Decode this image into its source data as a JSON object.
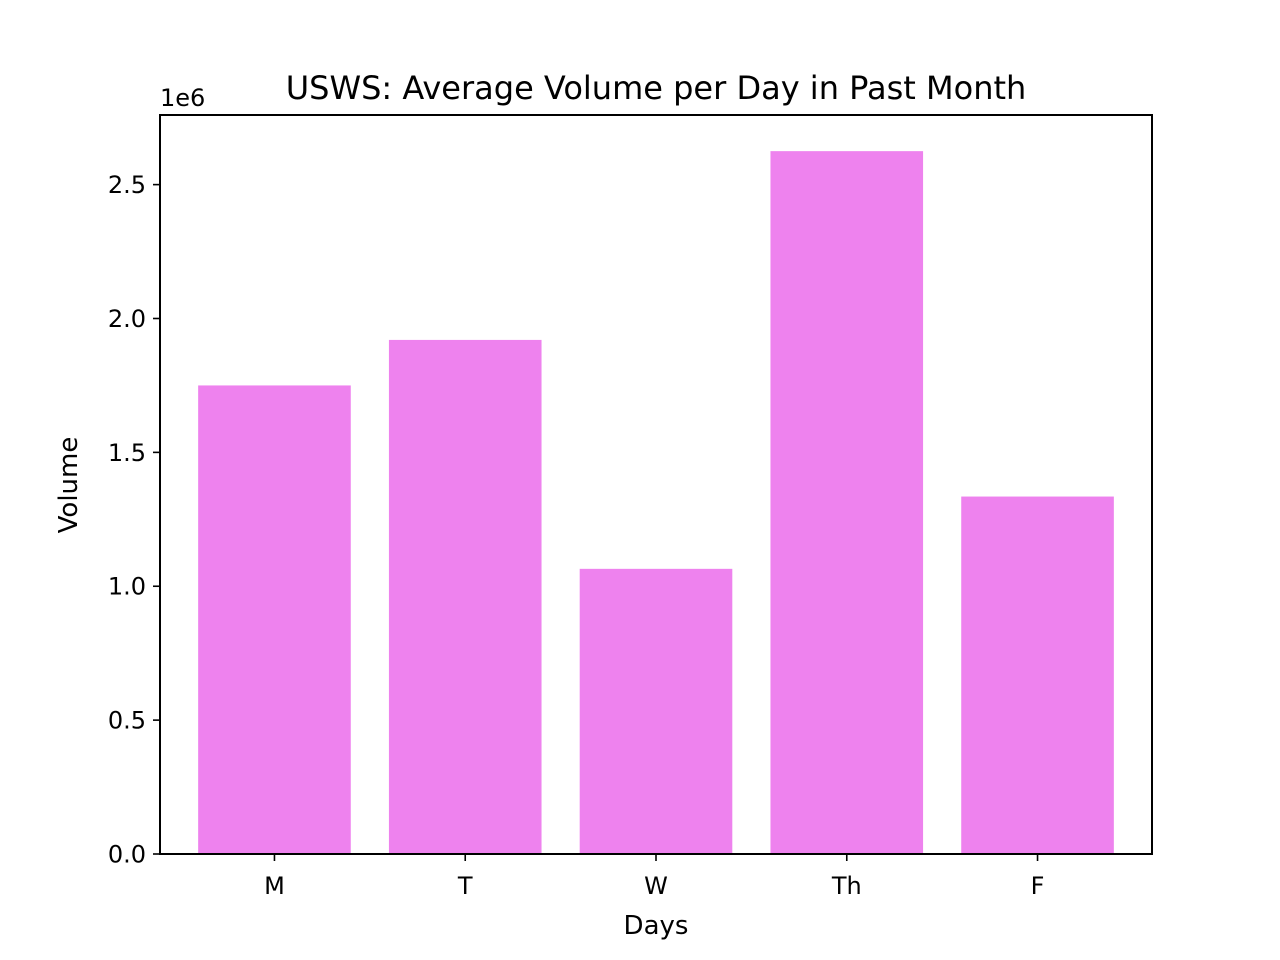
{
  "chart_data": {
    "type": "bar",
    "title": "USWS: Average Volume per Day in Past Month",
    "xlabel": "Days",
    "ylabel": "Volume",
    "y_offset_label": "1e6",
    "categories": [
      "M",
      "T",
      "W",
      "Th",
      "F"
    ],
    "values": [
      1750000,
      1920000,
      1065000,
      2625000,
      1335000
    ],
    "ylim": [
      0,
      2760000
    ],
    "yticks": [
      0,
      500000,
      1000000,
      1500000,
      2000000,
      2500000
    ],
    "ytick_labels": [
      "0.0",
      "0.5",
      "1.0",
      "1.5",
      "2.0",
      "2.5"
    ],
    "grid": false,
    "bar_color": "#ee82ee"
  }
}
